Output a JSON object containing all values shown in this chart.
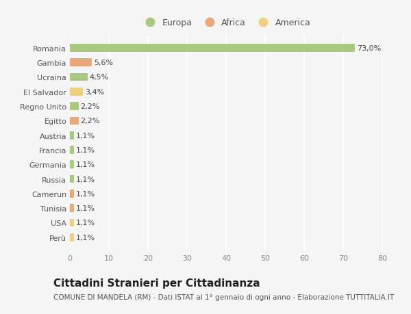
{
  "categories": [
    "Perù",
    "USA",
    "Tunisia",
    "Camerun",
    "Russia",
    "Germania",
    "Francia",
    "Austria",
    "Egitto",
    "Regno Unito",
    "El Salvador",
    "Ucraina",
    "Gambia",
    "Romania"
  ],
  "values": [
    1.1,
    1.1,
    1.1,
    1.1,
    1.1,
    1.1,
    1.1,
    1.1,
    2.2,
    2.2,
    3.4,
    4.5,
    5.6,
    73.0
  ],
  "labels": [
    "1,1%",
    "1,1%",
    "1,1%",
    "1,1%",
    "1,1%",
    "1,1%",
    "1,1%",
    "1,1%",
    "2,2%",
    "2,2%",
    "3,4%",
    "4,5%",
    "5,6%",
    "73,0%"
  ],
  "continents": [
    "America",
    "America",
    "Africa",
    "Africa",
    "Europa",
    "Europa",
    "Europa",
    "Europa",
    "Africa",
    "Europa",
    "America",
    "Europa",
    "Africa",
    "Europa"
  ],
  "continent_colors": {
    "Europa": "#a8c97f",
    "Africa": "#e8a87c",
    "America": "#f0d080"
  },
  "xlim": [
    0,
    80
  ],
  "xticks": [
    0,
    10,
    20,
    30,
    40,
    50,
    60,
    70,
    80
  ],
  "title": "Cittadini Stranieri per Cittadinanza",
  "subtitle": "COMUNE DI MANDELA (RM) - Dati ISTAT al 1° gennaio di ogni anno - Elaborazione TUTTITALIA.IT",
  "background_color": "#f5f5f5",
  "plot_bg_color": "#f5f5f5",
  "grid_color": "#ffffff",
  "bar_height": 0.55,
  "title_fontsize": 11,
  "subtitle_fontsize": 7.5,
  "label_fontsize": 8,
  "tick_fontsize": 8,
  "legend_fontsize": 9
}
